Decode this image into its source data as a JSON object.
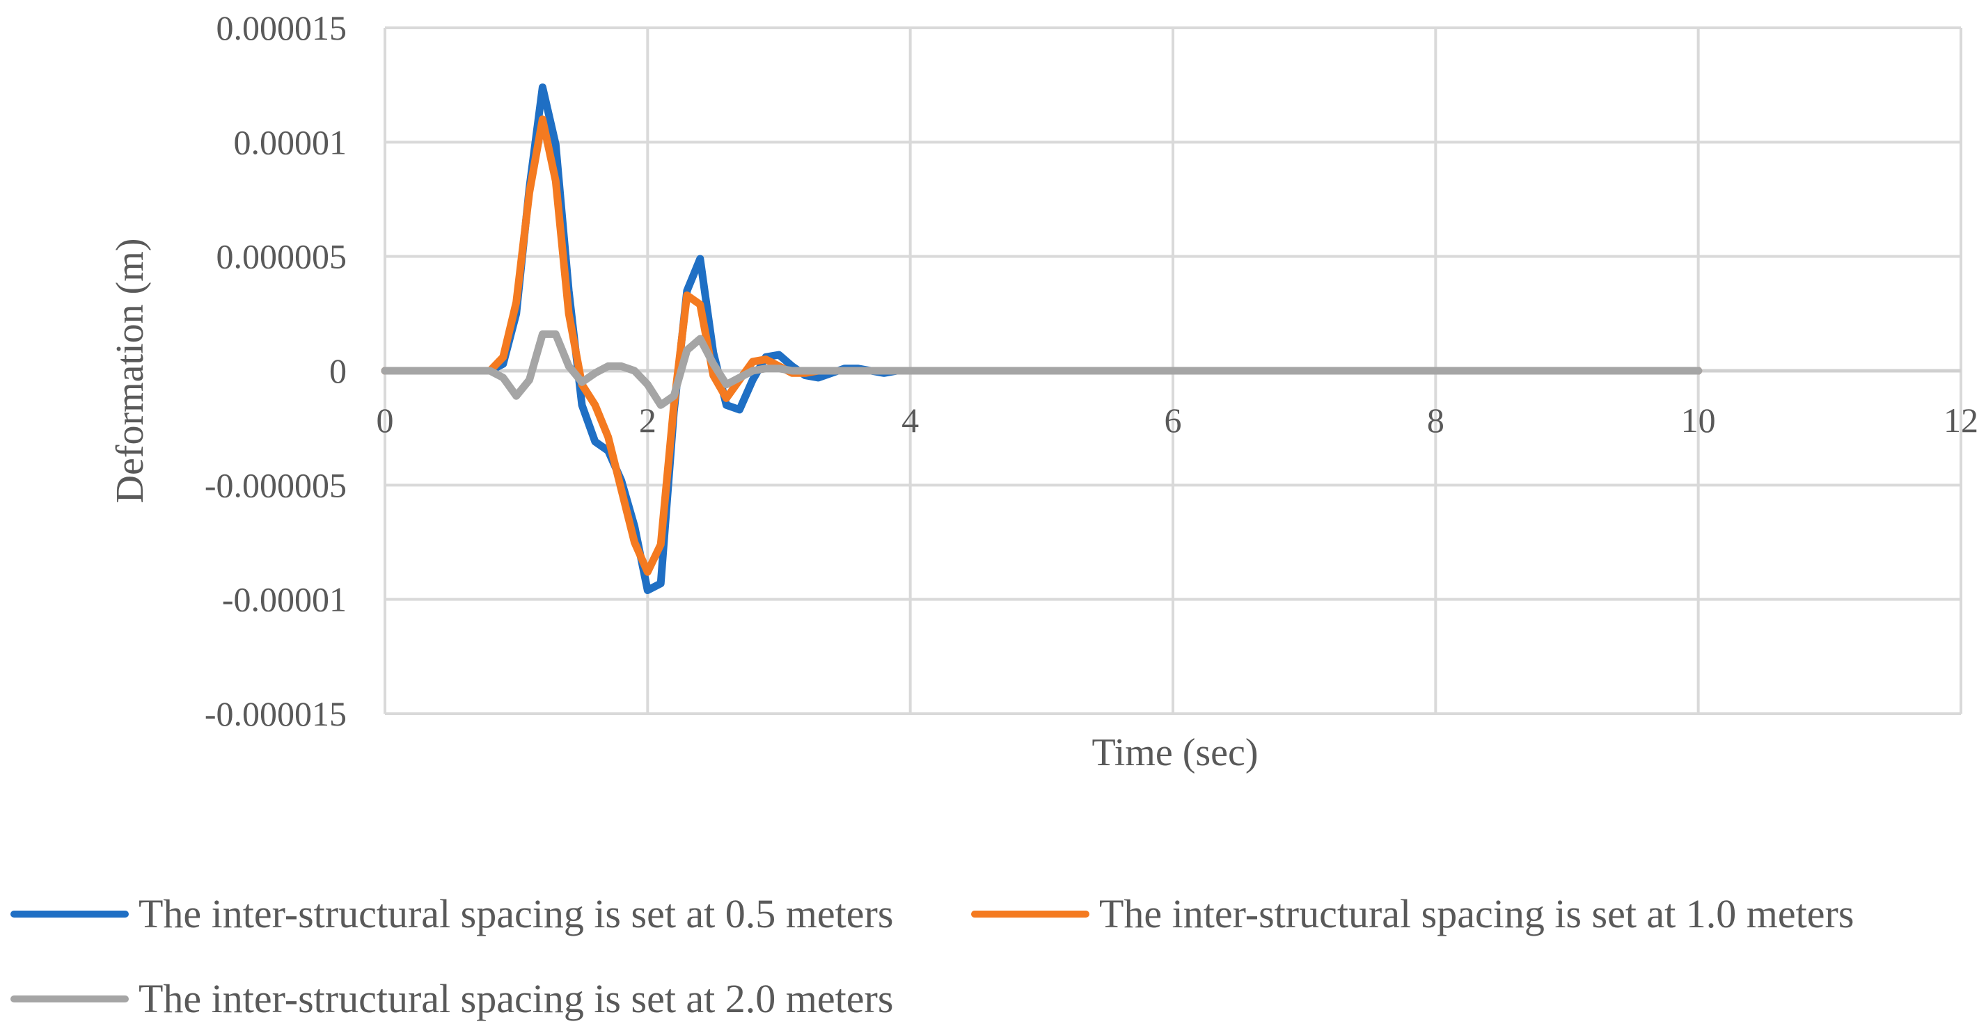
{
  "chart_data": {
    "type": "line",
    "title": "",
    "xlabel": "Time (sec)",
    "ylabel": "Deformation (m)",
    "xlim": [
      0,
      12
    ],
    "ylim": [
      -1.5e-05,
      1.5e-05
    ],
    "x_ticks": [
      0,
      2,
      4,
      6,
      8,
      10,
      12
    ],
    "x_tick_labels": [
      "0",
      "2",
      "4",
      "6",
      "8",
      "10",
      "12"
    ],
    "y_ticks": [
      1.5e-05,
      1e-05,
      5e-06,
      0,
      -5e-06,
      -1e-05,
      -1.5e-05
    ],
    "y_tick_labels": [
      "0.000015",
      "0.00001",
      "0.000005",
      "0",
      "-0.000005",
      "-0.00001",
      "-0.000015"
    ],
    "grid": true,
    "legend_position": "bottom",
    "series": [
      {
        "name": "The inter-structural spacing is set at 0.5 meters",
        "color": "#1f6fc4",
        "x": [
          0,
          0.8,
          0.9,
          1.0,
          1.1,
          1.2,
          1.3,
          1.4,
          1.5,
          1.6,
          1.7,
          1.8,
          1.9,
          2.0,
          2.1,
          2.2,
          2.3,
          2.4,
          2.5,
          2.6,
          2.7,
          2.8,
          2.9,
          3.0,
          3.1,
          3.2,
          3.3,
          3.4,
          3.5,
          3.6,
          3.7,
          3.8,
          3.9,
          4.0,
          4.1,
          4.2,
          5,
          6,
          7,
          8,
          9,
          10
        ],
        "y": [
          0,
          0,
          3e-07,
          2.5e-06,
          8e-06,
          1.24e-05,
          9.9e-06,
          3.5e-06,
          -1.5e-06,
          -3.1e-06,
          -3.5e-06,
          -4.8e-06,
          -6.8e-06,
          -9.6e-06,
          -9.3e-06,
          -1.8e-06,
          3.5e-06,
          4.9e-06,
          8e-07,
          -1.5e-06,
          -1.7e-06,
          -4e-07,
          6e-07,
          7e-07,
          2e-07,
          -2e-07,
          -3e-07,
          -1e-07,
          1e-07,
          1e-07,
          0,
          -1e-07,
          0,
          0,
          0,
          0,
          0,
          0,
          0,
          0,
          0,
          0
        ]
      },
      {
        "name": "The inter-structural spacing is set at 1.0 meters",
        "color": "#f47a20",
        "x": [
          0,
          0.8,
          0.9,
          1.0,
          1.1,
          1.2,
          1.3,
          1.4,
          1.5,
          1.6,
          1.7,
          1.8,
          1.9,
          2.0,
          2.1,
          2.2,
          2.3,
          2.4,
          2.5,
          2.6,
          2.7,
          2.8,
          2.9,
          3.0,
          3.1,
          3.2,
          3.3,
          3.4,
          3.5,
          3.6,
          3.7,
          3.8,
          3.9,
          4.0,
          5,
          6,
          7,
          8,
          9,
          10
        ],
        "y": [
          0,
          0,
          6e-07,
          3e-06,
          7.8e-06,
          1.1e-05,
          8.3e-06,
          2.5e-06,
          -6e-07,
          -1.5e-06,
          -2.9e-06,
          -5.2e-06,
          -7.5e-06,
          -8.8e-06,
          -7.6e-06,
          -1.5e-06,
          3.3e-06,
          2.9e-06,
          -2e-07,
          -1.2e-06,
          -4e-07,
          4e-07,
          5e-07,
          2e-07,
          -1e-07,
          -1e-07,
          0,
          0,
          0,
          0,
          0,
          0,
          0,
          0,
          0,
          0,
          0,
          0,
          0,
          0
        ]
      },
      {
        "name": "The inter-structural spacing is set at 2.0 meters",
        "color": "#a5a5a5",
        "x": [
          0,
          0.8,
          0.9,
          1.0,
          1.1,
          1.2,
          1.3,
          1.4,
          1.5,
          1.6,
          1.7,
          1.8,
          1.9,
          2.0,
          2.1,
          2.2,
          2.3,
          2.4,
          2.5,
          2.6,
          2.7,
          2.8,
          2.9,
          3.0,
          3.1,
          3.2,
          3.3,
          3.4,
          3.5,
          4,
          5,
          6,
          7,
          8,
          9,
          10
        ],
        "y": [
          0,
          0,
          -3e-07,
          -1.1e-06,
          -4e-07,
          1.6e-06,
          1.6e-06,
          2e-07,
          -5e-07,
          -1e-07,
          2e-07,
          2e-07,
          0,
          -6e-07,
          -1.5e-06,
          -1.1e-06,
          9e-07,
          1.4e-06,
          3e-07,
          -6e-07,
          -3e-07,
          0,
          1e-07,
          1e-07,
          0,
          0,
          0,
          0,
          0,
          0,
          0,
          0,
          0,
          0,
          0,
          0
        ]
      }
    ]
  }
}
